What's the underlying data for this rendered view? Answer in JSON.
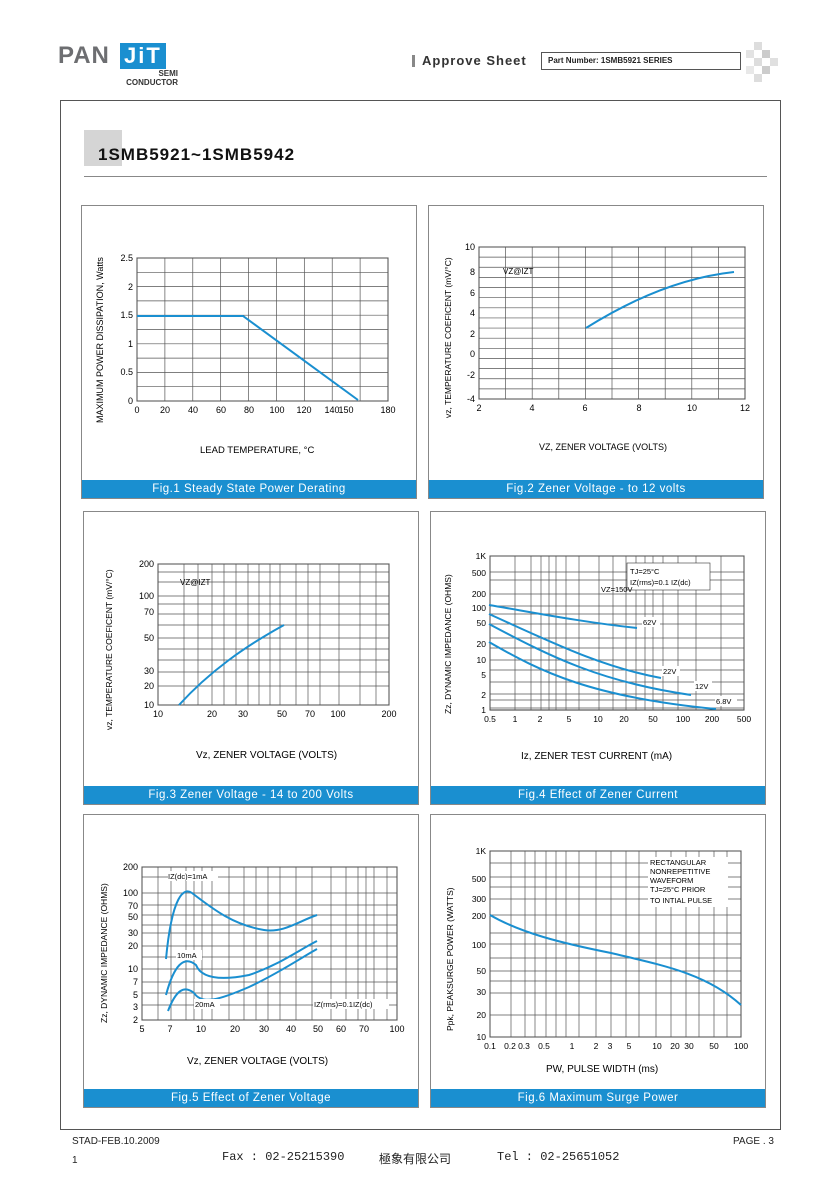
{
  "header": {
    "logo_pan": "PAN",
    "logo_jit": "JiT",
    "logo_semi": "SEMI",
    "logo_conductor": "CONDUCTOR",
    "approve": "Approve Sheet",
    "part_number": "Part Number: 1SMB5921 SERIES"
  },
  "title": "1SMB5921~1SMB5942",
  "fig1": {
    "caption": "Fig.1 Steady State Power Derating",
    "ylabel": "MAXIMUM POWER DISSIPATION, Watts",
    "xlabel": "LEAD TEMPERATURE, °C",
    "yticks": [
      "2.5",
      "2",
      "1.5",
      "1",
      "0.5",
      "0"
    ],
    "xticks": [
      "0",
      "20",
      "40",
      "60",
      "80",
      "100",
      "120",
      "140",
      "150",
      "180"
    ]
  },
  "fig2": {
    "caption": "Fig.2 Zener Voltage - to 12 volts",
    "ylabel": "vz, TEMPERATURE COEFICENT (mV/°C)",
    "xlabel": "VZ, ZENER VOLTAGE (VOLTS)",
    "annotation": "VZ@IZT",
    "yticks": [
      "10",
      "8",
      "6",
      "4",
      "2",
      "0",
      "-2",
      "-4"
    ],
    "xticks": [
      "2",
      "4",
      "6",
      "8",
      "10",
      "12"
    ]
  },
  "fig3": {
    "caption": "Fig.3 Zener Voltage - 14 to 200 Volts",
    "ylabel": "vz, TEMPERATURE COEFICENT (mV/°C)",
    "xlabel": "Vz, ZENER VOLTAGE (VOLTS)",
    "annotation": "VZ@IZT",
    "yticks": [
      "200",
      "100",
      "70",
      "50",
      "30",
      "20",
      "10"
    ],
    "xticks": [
      "10",
      "20",
      "30",
      "50",
      "70",
      "100",
      "200"
    ]
  },
  "fig4": {
    "caption": "Fig.4 Effect of Zener Current",
    "ylabel": "Zz, DYNAMIC IMPEDANCE (OHMS)",
    "xlabel": "Iz, ZENER TEST CURRENT (mA)",
    "legend1": "TJ=25°C",
    "legend2": "IZ(rms)=0.1 IZ(dc)",
    "annotation": "VZ=150V",
    "labels": [
      "62V",
      "22V",
      "12V",
      "6.8V"
    ],
    "yticks": [
      "1K",
      "500",
      "200",
      "100",
      "50",
      "20",
      "10",
      "5",
      "2",
      "1"
    ],
    "xticks": [
      "0.5",
      "1",
      "2",
      "5",
      "10",
      "20",
      "50",
      "100",
      "200",
      "500"
    ]
  },
  "fig5": {
    "caption": "Fig.5 Effect of Zener Voltage",
    "ylabel": "Zz, DYNAMIC IMPEDANCE (OHMS)",
    "xlabel": "Vz, ZENER VOLTAGE (VOLTS)",
    "labels": [
      "IZ(dc)=1mA",
      "10mA",
      "20mA",
      "IZ(rms)=0.1IZ(dc)"
    ],
    "yticks": [
      "200",
      "100",
      "70",
      "50",
      "30",
      "20",
      "10",
      "7",
      "5",
      "3",
      "2"
    ],
    "xticks": [
      "5",
      "7",
      "10",
      "20",
      "30",
      "40",
      "50",
      "60",
      "70",
      "100"
    ]
  },
  "fig6": {
    "caption": "Fig.6 Maximum Surge Power",
    "ylabel": "Ppk, PEAKSURGE POWER (WATTS)",
    "xlabel": "PW, PULSE WIDTH (ms)",
    "legend": [
      "RECTANGULAR",
      "NONREPETITIVE",
      "WAVEFORM",
      "TJ=25°C PRIOR",
      "TO INTIAL PULSE"
    ],
    "yticks": [
      "1K",
      "500",
      "300",
      "200",
      "100",
      "50",
      "30",
      "20",
      "10"
    ],
    "xticks": [
      "0.1",
      "0.2",
      "0.3",
      "0.5",
      "1",
      "2",
      "3",
      "5",
      "10",
      "20",
      "30",
      "50",
      "100"
    ]
  },
  "footer": {
    "stad": "STAD-FEB.10.2009",
    "page": "PAGE . 3",
    "num": "1",
    "fax": "Fax : 02-25215390",
    "company": "極象有限公司",
    "tel": "Tel : 02-25651052"
  }
}
